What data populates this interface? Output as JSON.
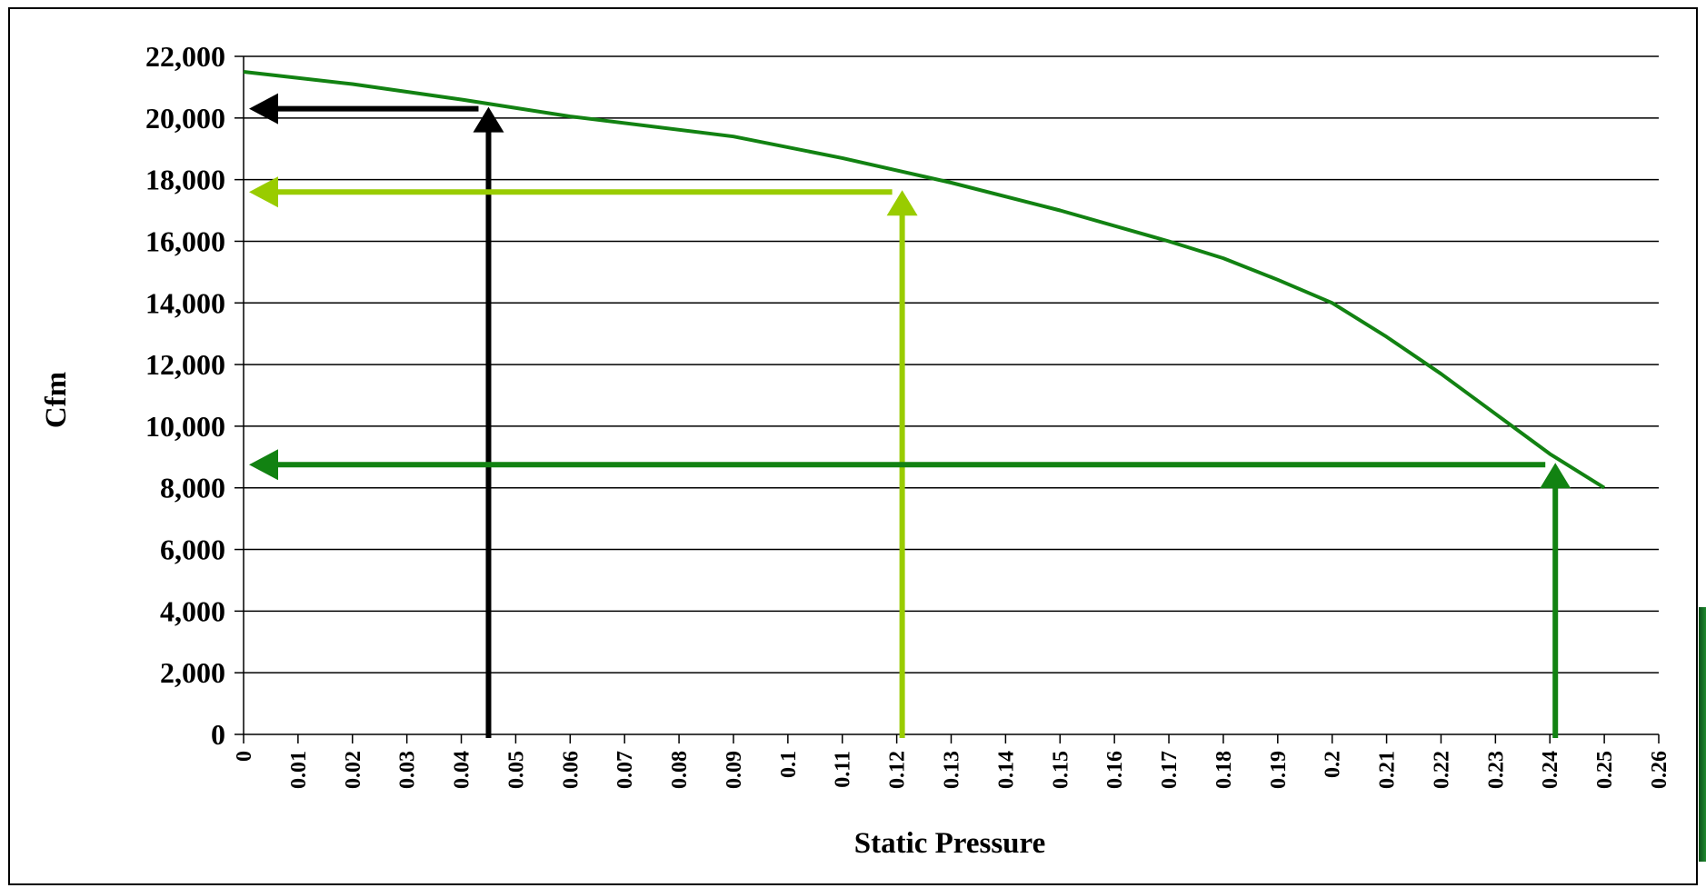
{
  "chart_data": {
    "type": "line",
    "xlabel": "Static Pressure",
    "ylabel": "Cfm",
    "xlim": [
      0,
      0.26
    ],
    "ylim": [
      0,
      22000
    ],
    "x_ticks": [
      "0",
      "0.01",
      "0.02",
      "0.03",
      "0.04",
      "0.05",
      "0.06",
      "0.07",
      "0.08",
      "0.09",
      "0.1",
      "0.11",
      "0.12",
      "0.13",
      "0.14",
      "0.15",
      "0.16",
      "0.17",
      "0.18",
      "0.19",
      "0.2",
      "0.21",
      "0.22",
      "0.23",
      "0.24",
      "0.25",
      "0.26"
    ],
    "y_ticks": [
      "0",
      "2,000",
      "4,000",
      "6,000",
      "8,000",
      "10,000",
      "12,000",
      "14,000",
      "16,000",
      "18,000",
      "20,000",
      "22,000"
    ],
    "x_tick_values": [
      0,
      0.01,
      0.02,
      0.03,
      0.04,
      0.05,
      0.06,
      0.07,
      0.08,
      0.09,
      0.1,
      0.11,
      0.12,
      0.13,
      0.14,
      0.15,
      0.16,
      0.17,
      0.18,
      0.19,
      0.2,
      0.21,
      0.22,
      0.23,
      0.24,
      0.25,
      0.26
    ],
    "y_tick_values": [
      0,
      2000,
      4000,
      6000,
      8000,
      10000,
      12000,
      14000,
      16000,
      18000,
      20000,
      22000
    ],
    "grid": "horizontal",
    "legend": "none",
    "series": [
      {
        "color": "#128212",
        "points": [
          [
            0,
            21500
          ],
          [
            0.02,
            21100
          ],
          [
            0.04,
            20600
          ],
          [
            0.06,
            20050
          ],
          [
            0.09,
            19400
          ],
          [
            0.11,
            18700
          ],
          [
            0.13,
            17900
          ],
          [
            0.15,
            17000
          ],
          [
            0.17,
            16000
          ],
          [
            0.18,
            15450
          ],
          [
            0.19,
            14750
          ],
          [
            0.2,
            14000
          ],
          [
            0.21,
            12900
          ],
          [
            0.22,
            11700
          ],
          [
            0.23,
            10400
          ],
          [
            0.24,
            9100
          ],
          [
            0.25,
            8000
          ]
        ]
      }
    ],
    "annotations": [
      {
        "type": "arrow-path",
        "color": "#000000",
        "from_x": 0.045,
        "at_y": 20300
      },
      {
        "type": "arrow-path",
        "color": "#99cc00",
        "from_x": 0.121,
        "at_y": 17600
      },
      {
        "type": "arrow-path",
        "color": "#128212",
        "from_x": 0.241,
        "at_y": 8750
      }
    ]
  },
  "colors": {
    "gridline": "#000000",
    "curve": "#128212",
    "arrow_black": "#000000",
    "arrow_light_green": "#99cc00",
    "arrow_dark_green": "#128212",
    "frame": "#000000"
  }
}
